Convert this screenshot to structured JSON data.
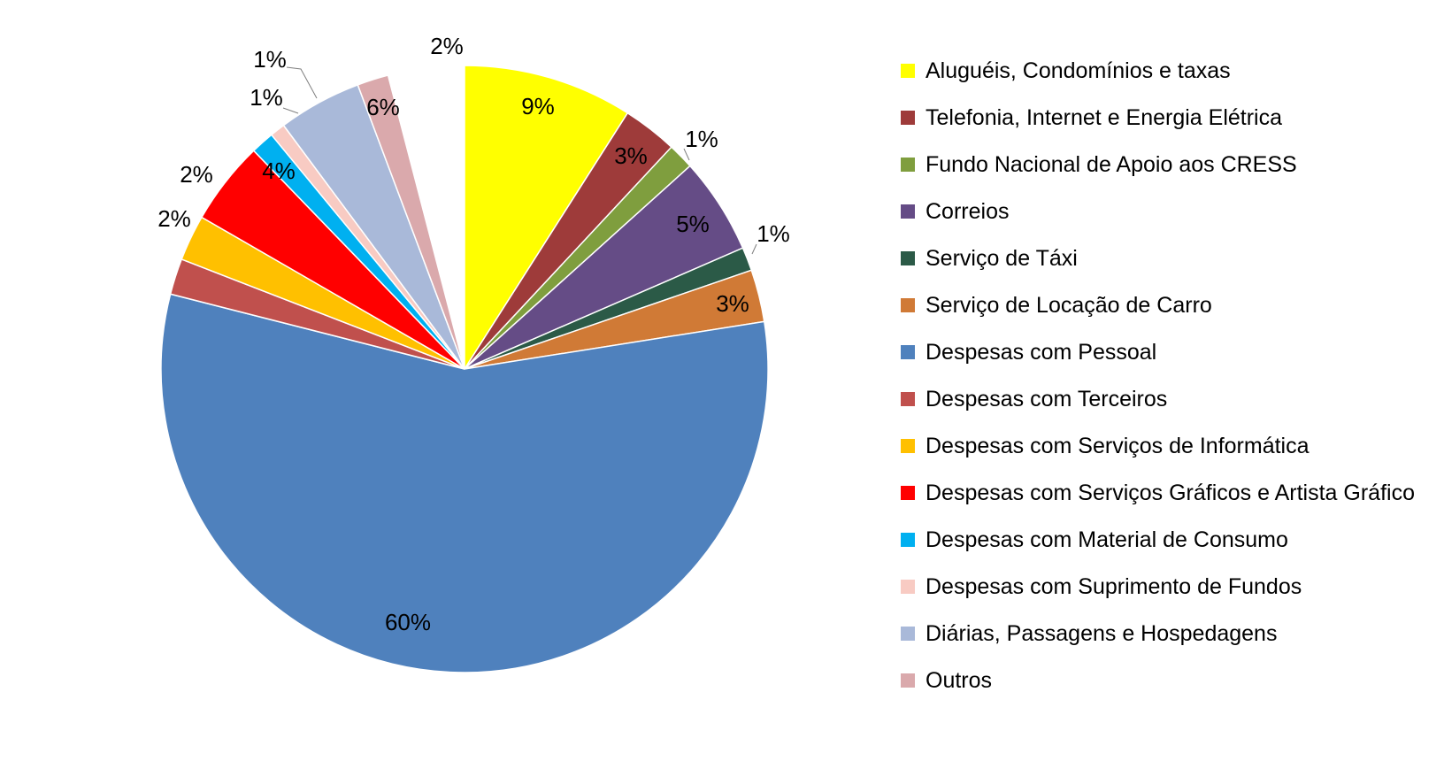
{
  "chart_data": {
    "type": "pie",
    "legend_position": "right",
    "slices": [
      {
        "label": "Aluguéis, Condomínios e taxas",
        "value": 9,
        "display": "9%",
        "color": "#FFFF00"
      },
      {
        "label": "Telefonia, Internet e Energia Elétrica",
        "value": 3,
        "display": "3%",
        "color": "#9E3B3A"
      },
      {
        "label": "Fundo Nacional de Apoio aos CRESS",
        "value": 1,
        "display": "1%",
        "color": "#7F9E3E"
      },
      {
        "label": "Correios",
        "value": 5,
        "display": "5%",
        "color": "#654C86"
      },
      {
        "label": "Serviço de Táxi",
        "value": 1,
        "display": "1%",
        "color": "#2B5A47"
      },
      {
        "label": "Serviço de Locação de Carro",
        "value": 3,
        "display": "3%",
        "color": "#D07A36"
      },
      {
        "label": "Despesas com Pessoal",
        "value": 60,
        "display": "60%",
        "color": "#4F81BD"
      },
      {
        "label": "Despesas com Terceiros",
        "value": 2,
        "display": "2%",
        "color": "#C0504D"
      },
      {
        "label": "Despesas com Serviços de Informática",
        "value": 2,
        "display": "2%",
        "color": "#FFC000"
      },
      {
        "label": "Despesas com Serviços Gráficos e Artista Gráfico",
        "value": 4,
        "display": "4%",
        "color": "#FF0000"
      },
      {
        "label": "Despesas com Material de Consumo",
        "value": 1,
        "display": "1%",
        "color": "#00B0F0"
      },
      {
        "label": "Despesas com Suprimento de Fundos",
        "value": 1,
        "display": "1%",
        "color": "#F8CBC3"
      },
      {
        "label": "Diárias, Passagens e Hospedagens",
        "value": 6,
        "display": "6%",
        "color": "#A9B9D9"
      },
      {
        "label": "Outros",
        "value": 2,
        "display": "2%",
        "color": "#DAA9AC"
      }
    ]
  }
}
